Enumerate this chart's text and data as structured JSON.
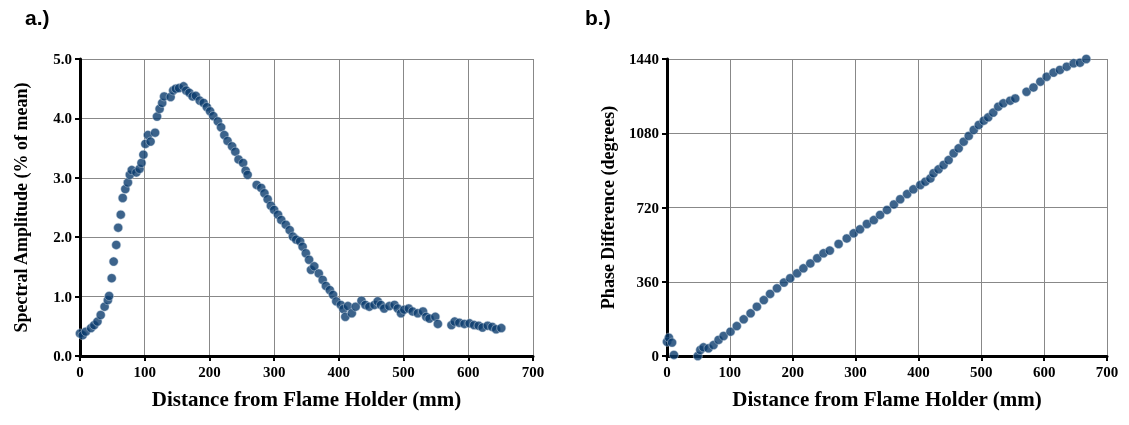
{
  "chart_data": [
    {
      "type": "scatter",
      "title": "a.)",
      "xlabel": "Distance from Flame Holder (mm)",
      "ylabel": "Spectral Amplitude (% of mean)",
      "color": "#0b3c6e",
      "marker": "circle",
      "grid": true,
      "xlim": [
        0,
        700
      ],
      "xticks": [
        0,
        100,
        200,
        300,
        400,
        500,
        600,
        700
      ],
      "ylim": [
        0,
        5
      ],
      "yticks": [
        {
          "value": 0,
          "label": "0.0"
        },
        {
          "value": 1,
          "label": "1.0"
        },
        {
          "value": 2,
          "label": "2.0"
        },
        {
          "value": 3,
          "label": "3.0"
        },
        {
          "value": 4,
          "label": "4.0"
        },
        {
          "value": 5,
          "label": "5.0"
        }
      ],
      "x": [
        0,
        4,
        9,
        17,
        22,
        27,
        32,
        38,
        43,
        45,
        49,
        52,
        56,
        59,
        63,
        66,
        70,
        74,
        77,
        80,
        87,
        92,
        95,
        98,
        101,
        105,
        109,
        116,
        119,
        123,
        127,
        130,
        140,
        144,
        148,
        153,
        160,
        164,
        169,
        174,
        179,
        185,
        191,
        196,
        201,
        206,
        213,
        218,
        223,
        228,
        235,
        240,
        245,
        252,
        256,
        259,
        273,
        280,
        285,
        290,
        295,
        300,
        306,
        311,
        318,
        324,
        329,
        334,
        340,
        344,
        349,
        354,
        357,
        362,
        369,
        375,
        380,
        386,
        391,
        396,
        403,
        407,
        410,
        414,
        420,
        426,
        435,
        441,
        447,
        455,
        460,
        465,
        470,
        478,
        486,
        491,
        496,
        501,
        508,
        514,
        522,
        530,
        535,
        540,
        549,
        553,
        574,
        579,
        586,
        594,
        602,
        609,
        616,
        622,
        630,
        637,
        643,
        651
      ],
      "values": [
        0.38,
        0.35,
        0.41,
        0.47,
        0.52,
        0.58,
        0.69,
        0.83,
        0.94,
        1.01,
        1.31,
        1.59,
        1.87,
        2.16,
        2.38,
        2.66,
        2.81,
        2.92,
        3.05,
        3.13,
        3.09,
        3.15,
        3.25,
        3.39,
        3.57,
        3.72,
        3.61,
        3.76,
        4.03,
        4.16,
        4.26,
        4.37,
        4.36,
        4.47,
        4.5,
        4.51,
        4.54,
        4.47,
        4.43,
        4.37,
        4.38,
        4.3,
        4.26,
        4.19,
        4.12,
        4.04,
        3.95,
        3.85,
        3.72,
        3.62,
        3.53,
        3.44,
        3.31,
        3.25,
        3.12,
        3.05,
        2.88,
        2.83,
        2.74,
        2.64,
        2.53,
        2.46,
        2.38,
        2.29,
        2.21,
        2.12,
        2.01,
        1.96,
        1.93,
        1.84,
        1.73,
        1.62,
        1.45,
        1.51,
        1.39,
        1.28,
        1.18,
        1.11,
        1.03,
        0.92,
        0.86,
        0.79,
        0.66,
        0.84,
        0.72,
        0.83,
        0.93,
        0.86,
        0.83,
        0.86,
        0.92,
        0.86,
        0.8,
        0.84,
        0.86,
        0.8,
        0.72,
        0.78,
        0.8,
        0.75,
        0.72,
        0.75,
        0.66,
        0.63,
        0.66,
        0.54,
        0.52,
        0.58,
        0.56,
        0.54,
        0.55,
        0.52,
        0.51,
        0.48,
        0.51,
        0.49,
        0.45,
        0.47
      ]
    },
    {
      "type": "scatter",
      "title": "b.)",
      "xlabel": "Distance from Flame Holder (mm)",
      "ylabel": "Phase Difference (degrees)",
      "color": "#0b3c6e",
      "marker": "circle",
      "grid": true,
      "xlim": [
        0,
        700
      ],
      "xticks": [
        0,
        100,
        200,
        300,
        400,
        500,
        600,
        700
      ],
      "ylim": [
        0,
        1440
      ],
      "yticks": [
        0,
        360,
        720,
        1080,
        1440
      ],
      "x": [
        0,
        3,
        8,
        11,
        49,
        53,
        58,
        66,
        74,
        82,
        90,
        101,
        111,
        122,
        133,
        143,
        154,
        164,
        175,
        186,
        196,
        207,
        217,
        228,
        239,
        249,
        259,
        273,
        286,
        297,
        307,
        318,
        329,
        339,
        350,
        361,
        371,
        382,
        392,
        403,
        411,
        419,
        424,
        432,
        440,
        448,
        456,
        464,
        472,
        480,
        488,
        496,
        504,
        511,
        519,
        527,
        535,
        546,
        554,
        572,
        583,
        594,
        604,
        615,
        625,
        636,
        647,
        657,
        667
      ],
      "values": [
        69,
        89,
        65,
        5,
        0,
        29,
        42,
        37,
        53,
        78,
        97,
        118,
        145,
        178,
        207,
        239,
        271,
        301,
        328,
        356,
        377,
        401,
        425,
        449,
        474,
        498,
        511,
        543,
        570,
        595,
        614,
        640,
        659,
        684,
        708,
        735,
        760,
        785,
        808,
        829,
        845,
        861,
        886,
        905,
        926,
        950,
        983,
        1007,
        1039,
        1067,
        1096,
        1120,
        1141,
        1157,
        1180,
        1209,
        1225,
        1238,
        1249,
        1281,
        1302,
        1330,
        1354,
        1374,
        1387,
        1403,
        1419,
        1422,
        1440
      ]
    }
  ]
}
